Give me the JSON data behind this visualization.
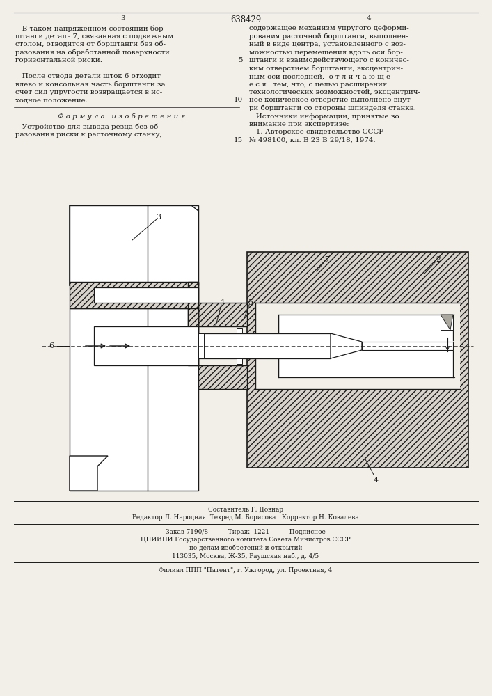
{
  "bg": "#f2efe8",
  "tc": "#1a1a1a",
  "lc": "#1a1a1a",
  "page_num_left": "3",
  "page_num_center": "638429",
  "page_num_right": "4",
  "left_col": [
    "   В таком напряженном состоянии бор-",
    "штанги деталь 7, связанная с подвижным",
    "столом, отводится от борштанги без об-",
    "разования на обработанной поверхности",
    "горизонтальной риски.",
    "",
    "   После отвода детали шток 6 отходит",
    "влево и консольная часть борштанги за",
    "счет сил упругости возвращается в ис-",
    "ходное положение."
  ],
  "right_top": [
    [
      "",
      "содержащее механизм упругого деформи-"
    ],
    [
      "",
      "рования расточной борштанги, выполнен-"
    ],
    [
      "",
      "ный в виде центра, установленного с воз-"
    ],
    [
      "",
      "можностью перемещения вдоль оси бор-"
    ],
    [
      "5",
      "штанги и взаимодействующего с коничес-"
    ],
    [
      "",
      "ким отверстием борштанги, эксцентрич-"
    ],
    [
      "",
      "ным оси последней,  о т л и ч а ю щ е -"
    ],
    [
      "",
      "е с я   тем, что, с целью расширения"
    ],
    [
      "",
      "технологических возможностей, эксцентрич-"
    ],
    [
      "10",
      "ное коническое отверстие выполнено внут-"
    ]
  ],
  "right_bottom": [
    [
      "",
      "ри борштанги со стороны шпинделя станка."
    ],
    [
      "",
      "   Источники информации, принятые во"
    ],
    [
      "",
      "внимание при экспертизе:"
    ],
    [
      "",
      "   1. Авторское свидетельство СССР"
    ],
    [
      "15",
      "№ 498100, кл. В 23 В 29/18, 1974."
    ]
  ],
  "formula_header": "Ф о р м у л а   и з о б р е т е н и я",
  "formula_body": [
    "   Устройство для вывода резца без об-",
    "разования риски к расточному станку,"
  ],
  "f1": "Составитель Г. Довнар",
  "f2": "Редактор Л. Народная  Техред М. Борисова   Корректор Н. Ковалева",
  "f3": "Заказ 7190/8          Тираж  1221          Подписное",
  "f4": "ЦНИИПИ Государственного комитета Совета Министров СССР",
  "f5": "по делам изобретений и открытий",
  "f6": "113035, Москва, Ж-35, Раушская наб., д. 4/5",
  "f7": "Филиал ППП \"Патент\", г. Ужгород, ул. Проектная, 4"
}
